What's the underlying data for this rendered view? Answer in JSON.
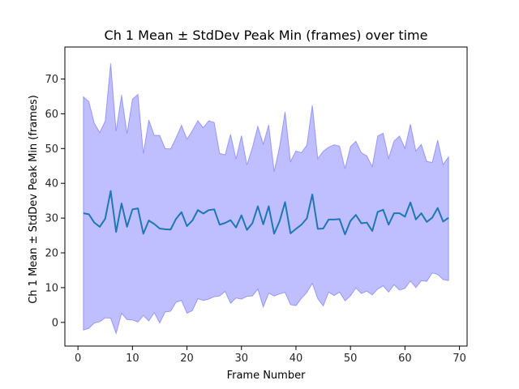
{
  "chart_data": {
    "type": "area",
    "title": "Ch 1 Mean ± StdDev Peak Min (frames) over time",
    "xlabel": "Frame Number",
    "ylabel": "Ch 1 Mean ± StdDev Peak Min (frames)",
    "xlim": [
      -2.4,
      71.4
    ],
    "ylim": [
      -6.8,
      79.2
    ],
    "xticks": [
      0,
      10,
      20,
      30,
      40,
      50,
      60,
      70
    ],
    "yticks": [
      0,
      10,
      20,
      30,
      40,
      50,
      60,
      70
    ],
    "grid": false,
    "legend": "none",
    "colors": {
      "band": "#0000ff",
      "band_opacity": 0.25,
      "mean_line": "#1f77b4"
    },
    "x": [
      1,
      2,
      3,
      4,
      5,
      6,
      7,
      8,
      9,
      10,
      11,
      12,
      13,
      14,
      15,
      16,
      17,
      18,
      19,
      20,
      21,
      22,
      23,
      24,
      25,
      26,
      27,
      28,
      29,
      30,
      31,
      32,
      33,
      34,
      35,
      36,
      37,
      38,
      39,
      40,
      41,
      42,
      43,
      44,
      45,
      46,
      47,
      48,
      49,
      50,
      51,
      52,
      53,
      54,
      55,
      56,
      57,
      58,
      59,
      60,
      61,
      62,
      63,
      64,
      65,
      66,
      67,
      68
    ],
    "series": [
      {
        "values": [
          31.4,
          31.1,
          28.7,
          27.5,
          29.8,
          37.8,
          26.0,
          34.2,
          27.5,
          32.5,
          32.8,
          25.5,
          29.3,
          28.3,
          27.0,
          26.8,
          26.7,
          29.8,
          31.7,
          27.7,
          29.3,
          32.3,
          31.3,
          32.3,
          32.5,
          28.1,
          28.6,
          29.4,
          27.3,
          30.8,
          26.6,
          28.5,
          33.4,
          28.2,
          33.4,
          25.5,
          29.1,
          34.6,
          25.6,
          26.9,
          28.1,
          29.9,
          36.8,
          26.9,
          27.0,
          29.6,
          29.6,
          29.7,
          25.3,
          29.2,
          30.9,
          28.5,
          28.7,
          26.3,
          31.8,
          32.4,
          28.1,
          31.4,
          31.4,
          30.4,
          34.5,
          29.6,
          31.4,
          28.9,
          30.1,
          32.9,
          29.0,
          30.1
        ]
      },
      {
        "name": "",
        "upper": [
          64.9,
          63.5,
          57.3,
          54.6,
          57.9,
          74.5,
          55.0,
          65.4,
          54.3,
          64.2,
          65.6,
          48.6,
          58.2,
          53.8,
          53.8,
          50.0,
          49.9,
          53.1,
          56.7,
          52.7,
          55.2,
          58.0,
          56.0,
          58.0,
          57.5,
          48.6,
          48.2,
          54.1,
          47.0,
          53.7,
          45.3,
          50.3,
          56.4,
          51.3,
          56.8,
          43.4,
          50.6,
          60.6,
          46.3,
          49.3,
          48.8,
          51.0,
          62.5,
          47.1,
          49.2,
          50.4,
          51.1,
          50.7,
          44.2,
          50.6,
          52.1,
          48.8,
          47.9,
          44.8,
          53.6,
          54.4,
          47.2,
          52.2,
          53.6,
          50.1,
          57.0,
          49.3,
          51.2,
          46.3,
          46.0,
          52.4,
          45.4,
          47.6
        ],
        "lower": [
          -2.2,
          -1.7,
          -0.2,
          0.2,
          1.3,
          1.2,
          -3.2,
          2.6,
          0.8,
          0.7,
          0.1,
          2.0,
          0.4,
          2.8,
          -0.2,
          3.0,
          3.2,
          5.8,
          6.3,
          2.6,
          3.4,
          6.8,
          6.3,
          6.7,
          7.4,
          7.6,
          8.9,
          5.5,
          7.0,
          6.7,
          7.5,
          7.6,
          9.6,
          4.4,
          8.4,
          7.6,
          8.2,
          8.6,
          5.1,
          4.8,
          6.9,
          8.6,
          11.2,
          6.8,
          4.7,
          8.7,
          7.7,
          8.7,
          6.2,
          7.6,
          9.9,
          8.3,
          9.0,
          7.9,
          9.6,
          10.5,
          8.7,
          10.8,
          9.3,
          9.8,
          11.9,
          10.0,
          12.0,
          11.8,
          14.2,
          13.8,
          12.3,
          12.0
        ]
      }
    ]
  }
}
